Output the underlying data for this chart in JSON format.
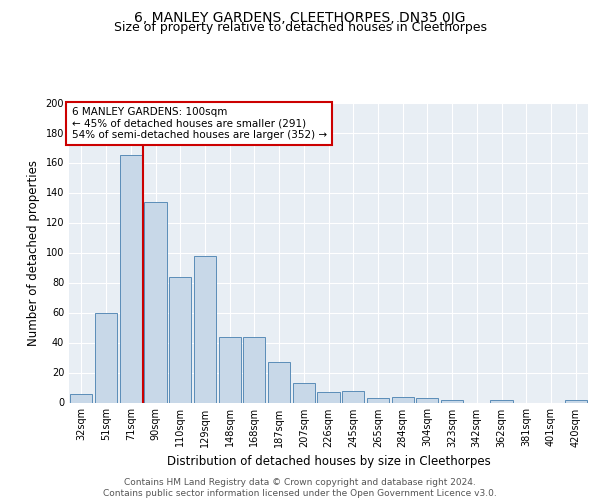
{
  "title": "6, MANLEY GARDENS, CLEETHORPES, DN35 0JG",
  "subtitle": "Size of property relative to detached houses in Cleethorpes",
  "xlabel": "Distribution of detached houses by size in Cleethorpes",
  "ylabel": "Number of detached properties",
  "categories": [
    "32sqm",
    "51sqm",
    "71sqm",
    "90sqm",
    "110sqm",
    "129sqm",
    "148sqm",
    "168sqm",
    "187sqm",
    "207sqm",
    "226sqm",
    "245sqm",
    "265sqm",
    "284sqm",
    "304sqm",
    "323sqm",
    "342sqm",
    "362sqm",
    "381sqm",
    "401sqm",
    "420sqm"
  ],
  "values": [
    6,
    60,
    165,
    134,
    84,
    98,
    44,
    44,
    27,
    13,
    7,
    8,
    3,
    4,
    3,
    2,
    0,
    2,
    0,
    0,
    2
  ],
  "bar_color": "#c8d8e8",
  "bar_edge_color": "#5b8db8",
  "background_color": "#e8eef4",
  "annotation_text": "6 MANLEY GARDENS: 100sqm\n← 45% of detached houses are smaller (291)\n54% of semi-detached houses are larger (352) →",
  "annotation_box_color": "#ffffff",
  "annotation_border_color": "#cc0000",
  "vline_x": 2.5,
  "vline_color": "#cc0000",
  "ylim": [
    0,
    200
  ],
  "yticks": [
    0,
    20,
    40,
    60,
    80,
    100,
    120,
    140,
    160,
    180,
    200
  ],
  "footer": "Contains HM Land Registry data © Crown copyright and database right 2024.\nContains public sector information licensed under the Open Government Licence v3.0.",
  "title_fontsize": 10,
  "subtitle_fontsize": 9,
  "xlabel_fontsize": 8.5,
  "ylabel_fontsize": 8.5,
  "footer_fontsize": 6.5,
  "tick_fontsize": 7,
  "annotation_fontsize": 7.5
}
